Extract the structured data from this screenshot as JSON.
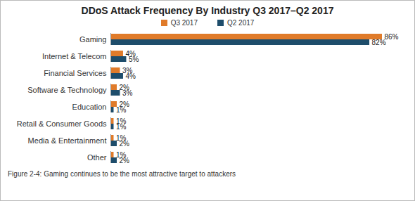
{
  "chart_data": {
    "type": "bar",
    "orientation": "horizontal",
    "title": "DDoS Attack Frequency By Industry Q3 2017–Q2 2017",
    "caption": "Figure 2-4: Gaming continues to be the most attractive target to attackers",
    "categories": [
      "Gaming",
      "Internet & Telecom",
      "Financial Services",
      "Software & Technology",
      "Education",
      "Retail & Consumer Goods",
      "Media & Entertainment",
      "Other"
    ],
    "series": [
      {
        "name": "Q3 2017",
        "color": "#e07b2a",
        "values": [
          86,
          4,
          3,
          2,
          2,
          1,
          1,
          1
        ],
        "value_labels": [
          "86%",
          "4%",
          "3%",
          "2%",
          "2%",
          "1%",
          "1%",
          "1%"
        ]
      },
      {
        "name": "Q2 2017",
        "color": "#1e4d6b",
        "values": [
          82,
          5,
          4,
          3,
          1,
          1,
          2,
          2
        ],
        "value_labels": [
          "82%",
          "5%",
          "4%",
          "3%",
          "1%",
          "1%",
          "2%",
          "2%"
        ]
      }
    ],
    "data_labels": true,
    "tick_labels": "y",
    "legend": "top"
  }
}
